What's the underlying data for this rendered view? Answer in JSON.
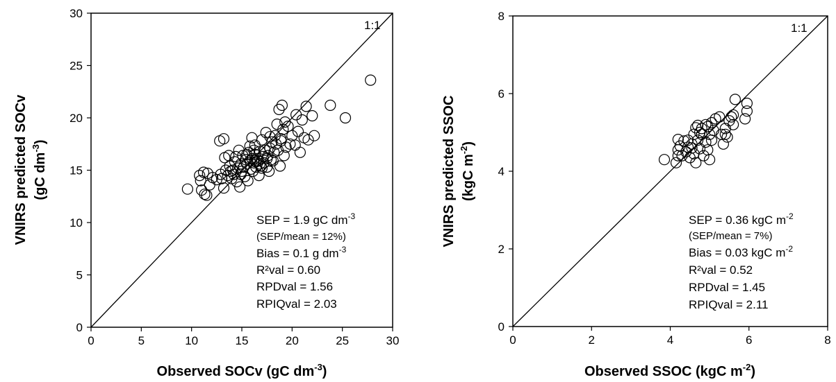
{
  "chart_data": [
    {
      "type": "scatter",
      "xlabel": "Observed SOCv (gC dm-3)",
      "xlabel_main": "Observed SOCv (gC dm",
      "xlabel_sup": "-3",
      "xlabel_end": ")",
      "ylabel_line1": "VNIRS predicted SOCv",
      "ylabel_line2_main": "(gC dm",
      "ylabel_line2_sup": "-3",
      "ylabel_line2_end": ")",
      "xlim": [
        0,
        30
      ],
      "ylim": [
        0,
        30
      ],
      "xticks": [
        "0",
        "5",
        "10",
        "15",
        "20",
        "25",
        "30"
      ],
      "yticks": [
        "0",
        "5",
        "10",
        "15",
        "20",
        "25",
        "30"
      ],
      "one_to_one_label": "1:1",
      "stats": [
        {
          "main": "SEP = 1.9 gC dm",
          "sup": "-3",
          "end": ""
        },
        {
          "main": "(SEP/mean = 12%)",
          "sup": "",
          "end": ""
        },
        {
          "main": "Bias = 0.1 g dm",
          "sup": "-3",
          "end": ""
        },
        {
          "main": "R²val = 0.60",
          "sup": "",
          "end": ""
        },
        {
          "main": "RPDval = 1.56",
          "sup": "",
          "end": ""
        },
        {
          "main": "RPIQval = 2.03",
          "sup": "",
          "end": ""
        }
      ],
      "points": [
        [
          9.6,
          13.2
        ],
        [
          10.8,
          14.5
        ],
        [
          10.9,
          14.0
        ],
        [
          11.0,
          13.1
        ],
        [
          11.2,
          14.8
        ],
        [
          11.3,
          12.7
        ],
        [
          11.5,
          12.6
        ],
        [
          11.6,
          14.7
        ],
        [
          11.8,
          13.6
        ],
        [
          12.1,
          14.3
        ],
        [
          12.5,
          14.1
        ],
        [
          12.8,
          17.8
        ],
        [
          12.9,
          14.6
        ],
        [
          13.0,
          14.2
        ],
        [
          13.2,
          13.3
        ],
        [
          13.2,
          18.0
        ],
        [
          13.3,
          16.2
        ],
        [
          13.4,
          15.0
        ],
        [
          13.6,
          14.5
        ],
        [
          13.7,
          16.4
        ],
        [
          13.8,
          15.4
        ],
        [
          14.0,
          14.2
        ],
        [
          14.1,
          15.0
        ],
        [
          14.2,
          14.6
        ],
        [
          14.3,
          15.8
        ],
        [
          14.4,
          16.3
        ],
        [
          14.5,
          13.9
        ],
        [
          14.6,
          15.2
        ],
        [
          14.7,
          16.9
        ],
        [
          14.8,
          13.4
        ],
        [
          14.9,
          15.6
        ],
        [
          15.0,
          14.9
        ],
        [
          15.1,
          16.4
        ],
        [
          15.2,
          15.3
        ],
        [
          15.3,
          14.4
        ],
        [
          15.4,
          16.0
        ],
        [
          15.5,
          15.6
        ],
        [
          15.6,
          14.0
        ],
        [
          15.7,
          16.7
        ],
        [
          15.8,
          17.3
        ],
        [
          15.9,
          15.1
        ],
        [
          16.0,
          16.1
        ],
        [
          16.0,
          18.1
        ],
        [
          16.1,
          14.9
        ],
        [
          16.2,
          15.7
        ],
        [
          16.3,
          16.5
        ],
        [
          16.3,
          17.4
        ],
        [
          16.4,
          15.3
        ],
        [
          16.5,
          16.1
        ],
        [
          16.6,
          15.9
        ],
        [
          16.7,
          14.5
        ],
        [
          16.8,
          16.8
        ],
        [
          16.9,
          15.4
        ],
        [
          17.0,
          17.9
        ],
        [
          17.1,
          16.3
        ],
        [
          17.2,
          15.7
        ],
        [
          17.3,
          16.9
        ],
        [
          17.4,
          18.6
        ],
        [
          17.5,
          15.3
        ],
        [
          17.6,
          16.4
        ],
        [
          17.7,
          14.9
        ],
        [
          17.8,
          17.1
        ],
        [
          17.9,
          16.0
        ],
        [
          18.0,
          17.7
        ],
        [
          18.1,
          15.9
        ],
        [
          18.2,
          16.7
        ],
        [
          18.3,
          18.3
        ],
        [
          18.4,
          17.5
        ],
        [
          18.5,
          19.4
        ],
        [
          18.6,
          16.9
        ],
        [
          18.7,
          20.8
        ],
        [
          18.8,
          15.4
        ],
        [
          18.9,
          17.8
        ],
        [
          19.0,
          21.2
        ],
        [
          19.1,
          18.9
        ],
        [
          19.2,
          16.4
        ],
        [
          19.4,
          17.2
        ],
        [
          19.6,
          19.2
        ],
        [
          19.8,
          17.5
        ],
        [
          20.0,
          18.3
        ],
        [
          20.3,
          17.4
        ],
        [
          20.6,
          18.7
        ],
        [
          20.8,
          16.7
        ],
        [
          21.0,
          19.8
        ],
        [
          21.2,
          18.1
        ],
        [
          21.4,
          21.1
        ],
        [
          21.6,
          17.9
        ],
        [
          22.0,
          20.2
        ],
        [
          22.2,
          18.3
        ],
        [
          23.8,
          21.2
        ],
        [
          25.3,
          20.0
        ],
        [
          27.8,
          23.6
        ],
        [
          16.4,
          15.8
        ],
        [
          16.8,
          15.6
        ],
        [
          17.5,
          16.1
        ],
        [
          15.8,
          15.9
        ],
        [
          16.2,
          16.9
        ],
        [
          17.0,
          15.2
        ],
        [
          14.9,
          14.6
        ],
        [
          13.9,
          14.9
        ],
        [
          15.5,
          16.5
        ],
        [
          17.8,
          18.2
        ],
        [
          18.9,
          18.0
        ],
        [
          19.3,
          19.6
        ],
        [
          20.4,
          20.3
        ]
      ]
    },
    {
      "type": "scatter",
      "xlabel": "Observed  SSOC (kgC m-2)",
      "xlabel_main": "Observed  SSOC (kgC m",
      "xlabel_sup": "-2",
      "xlabel_end": ")",
      "ylabel_line1": "VNIRS predicted SSOC",
      "ylabel_line2_main": "(kgC m",
      "ylabel_line2_sup": "-2",
      "ylabel_line2_end": ")",
      "xlim": [
        0,
        8
      ],
      "ylim": [
        0,
        8
      ],
      "xticks": [
        "0",
        "2",
        "4",
        "6",
        "8"
      ],
      "yticks": [
        "0",
        "2",
        "4",
        "6",
        "8"
      ],
      "one_to_one_label": "1:1",
      "stats": [
        {
          "main": "SEP = 0.36 kgC m",
          "sup": "-2",
          "end": ""
        },
        {
          "main": "(SEP/mean = 7%)",
          "sup": "",
          "end": ""
        },
        {
          "main": "Bias = 0.03 kgC m",
          "sup": "-2",
          "end": ""
        },
        {
          "main": "R²val = 0.52",
          "sup": "",
          "end": ""
        },
        {
          "main": "RPDval = 1.45",
          "sup": "",
          "end": ""
        },
        {
          "main": "RPIQval = 2.11",
          "sup": "",
          "end": ""
        }
      ],
      "points": [
        [
          3.85,
          4.3
        ],
        [
          4.15,
          4.22
        ],
        [
          4.2,
          4.55
        ],
        [
          4.2,
          4.82
        ],
        [
          4.25,
          4.65
        ],
        [
          4.3,
          4.4
        ],
        [
          4.35,
          4.78
        ],
        [
          4.4,
          4.5
        ],
        [
          4.45,
          4.62
        ],
        [
          4.5,
          4.35
        ],
        [
          4.55,
          4.7
        ],
        [
          4.6,
          4.45
        ],
        [
          4.6,
          4.95
        ],
        [
          4.65,
          5.12
        ],
        [
          4.65,
          4.22
        ],
        [
          4.7,
          4.8
        ],
        [
          4.7,
          5.18
        ],
        [
          4.75,
          4.58
        ],
        [
          4.8,
          4.95
        ],
        [
          4.8,
          5.1
        ],
        [
          4.85,
          4.4
        ],
        [
          4.9,
          4.75
        ],
        [
          4.9,
          5.2
        ],
        [
          4.95,
          4.55
        ],
        [
          5.0,
          4.95
        ],
        [
          5.0,
          4.3
        ],
        [
          5.05,
          5.25
        ],
        [
          5.05,
          4.8
        ],
        [
          5.1,
          5.05
        ],
        [
          5.15,
          5.35
        ],
        [
          5.25,
          5.4
        ],
        [
          5.3,
          4.95
        ],
        [
          5.35,
          4.7
        ],
        [
          5.4,
          5.1
        ],
        [
          5.45,
          4.88
        ],
        [
          5.5,
          5.3
        ],
        [
          5.55,
          5.4
        ],
        [
          5.6,
          5.2
        ],
        [
          5.65,
          5.85
        ],
        [
          5.9,
          5.35
        ],
        [
          5.95,
          5.55
        ],
        [
          5.95,
          5.75
        ],
        [
          4.2,
          4.4
        ],
        [
          4.45,
          4.8
        ],
        [
          4.55,
          4.6
        ],
        [
          4.75,
          5.0
        ],
        [
          4.95,
          5.15
        ],
        [
          5.4,
          4.95
        ],
        [
          5.6,
          5.45
        ]
      ]
    }
  ]
}
